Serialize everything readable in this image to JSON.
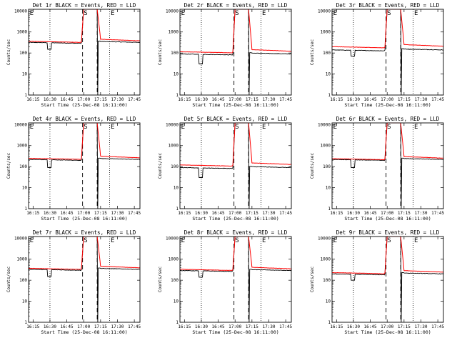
{
  "figure": {
    "ylabel": "Counts/sec",
    "xlabel": "Start Time (25-Dec-08 16:11:00)"
  },
  "colors": {
    "events": "#000000",
    "lld": "#ff0000"
  },
  "chart_data": [
    {
      "type": "line",
      "title": "Det 1r BLACK = Events, RED = LLD",
      "xlabel": "Start Time (25-Dec-08 16:11:00)",
      "ylabel": "Counts/sec",
      "yscale": "log",
      "ylim": [
        1,
        12000
      ],
      "x_ticks": [
        "16:15",
        "16:30",
        "16:45",
        "17:00",
        "17:15",
        "17:30",
        "17:45"
      ],
      "y_ticks": [
        "1",
        "10",
        "100",
        "1000",
        "10000"
      ],
      "vlines_dotted": [
        "16:30",
        "17:23"
      ],
      "vlines_dashed": [
        "16:59",
        "17:12"
      ],
      "markers": [
        "E",
        "S",
        "E"
      ],
      "events_base": 320,
      "lld_base": 360,
      "dip": {
        "from": "16:28",
        "to": "16:31",
        "value": 150
      },
      "peak": {
        "from": "17:00",
        "to": "17:12",
        "value": 12000
      }
    },
    {
      "type": "line",
      "title": "Det 2r BLACK = Events, RED = LLD",
      "xlabel": "Start Time (25-Dec-08 16:11:00)",
      "ylabel": "Counts/sec",
      "yscale": "log",
      "ylim": [
        1,
        12000
      ],
      "x_ticks": [
        "16:15",
        "16:30",
        "16:45",
        "17:00",
        "17:15",
        "17:30",
        "17:45"
      ],
      "y_ticks": [
        "1",
        "10",
        "100",
        "1000",
        "10000"
      ],
      "vlines_dotted": [
        "16:30",
        "17:23"
      ],
      "vlines_dashed": [
        "16:59",
        "17:12"
      ],
      "markers": [
        "E",
        "S",
        "E"
      ],
      "events_base": 90,
      "lld_base": 115,
      "dip": {
        "from": "16:28",
        "to": "16:31",
        "value": 30
      },
      "peak": {
        "from": "17:00",
        "to": "17:12",
        "value": 12000
      }
    },
    {
      "type": "line",
      "title": "Det 3r BLACK = Events, RED = LLD",
      "xlabel": "Start Time (25-Dec-08 16:11:00)",
      "ylabel": "Counts/sec",
      "yscale": "log",
      "ylim": [
        1,
        12000
      ],
      "x_ticks": [
        "16:15",
        "16:30",
        "16:45",
        "17:00",
        "17:15",
        "17:30",
        "17:45"
      ],
      "y_ticks": [
        "1",
        "10",
        "100",
        "1000",
        "10000"
      ],
      "vlines_dotted": [
        "16:30",
        "17:23"
      ],
      "vlines_dashed": [
        "16:59",
        "17:12"
      ],
      "markers": [
        "E",
        "S",
        "E"
      ],
      "events_base": 140,
      "lld_base": 200,
      "dip": {
        "from": "16:28",
        "to": "16:31",
        "value": 70
      },
      "peak": {
        "from": "17:00",
        "to": "17:12",
        "value": 12000
      }
    },
    {
      "type": "line",
      "title": "Det 4r BLACK = Events, RED = LLD",
      "xlabel": "Start Time (25-Dec-08 16:11:00)",
      "ylabel": "Counts/sec",
      "yscale": "log",
      "ylim": [
        1,
        12000
      ],
      "x_ticks": [
        "16:15",
        "16:30",
        "16:45",
        "17:00",
        "17:15",
        "17:30",
        "17:45"
      ],
      "y_ticks": [
        "1",
        "10",
        "100",
        "1000",
        "10000"
      ],
      "vlines_dotted": [
        "16:30",
        "17:23"
      ],
      "vlines_dashed": [
        "16:59",
        "17:12"
      ],
      "markers": [
        "E",
        "S",
        "E"
      ],
      "events_base": 220,
      "lld_base": 250,
      "dip": {
        "from": "16:28",
        "to": "16:31",
        "value": 90
      },
      "peak": {
        "from": "17:00",
        "to": "17:12",
        "value": 12000
      }
    },
    {
      "type": "line",
      "title": "Det 5r BLACK = Events, RED = LLD",
      "xlabel": "Start Time (25-Dec-08 16:11:00)",
      "ylabel": "Counts/sec",
      "yscale": "log",
      "ylim": [
        1,
        12000
      ],
      "x_ticks": [
        "16:15",
        "16:30",
        "16:45",
        "17:00",
        "17:15",
        "17:30",
        "17:45"
      ],
      "y_ticks": [
        "1",
        "10",
        "100",
        "1000",
        "10000"
      ],
      "vlines_dotted": [
        "16:30",
        "17:23"
      ],
      "vlines_dashed": [
        "16:59",
        "17:12"
      ],
      "markers": [
        "E",
        "S",
        "E"
      ],
      "events_base": 90,
      "lld_base": 120,
      "dip": {
        "from": "16:28",
        "to": "16:31",
        "value": 30
      },
      "peak": {
        "from": "17:00",
        "to": "17:12",
        "value": 12000
      }
    },
    {
      "type": "line",
      "title": "Det 6r BLACK = Events, RED = LLD",
      "xlabel": "Start Time (25-Dec-08 16:11:00)",
      "ylabel": "Counts/sec",
      "yscale": "log",
      "ylim": [
        1,
        12000
      ],
      "x_ticks": [
        "16:15",
        "16:30",
        "16:45",
        "17:00",
        "17:15",
        "17:30",
        "17:45"
      ],
      "y_ticks": [
        "1",
        "10",
        "100",
        "1000",
        "10000"
      ],
      "vlines_dotted": [
        "16:30",
        "17:23"
      ],
      "vlines_dashed": [
        "16:59",
        "17:12"
      ],
      "markers": [
        "E",
        "S",
        "E"
      ],
      "events_base": 220,
      "lld_base": 240,
      "dip": {
        "from": "16:28",
        "to": "16:31",
        "value": 90
      },
      "peak": {
        "from": "17:00",
        "to": "17:12",
        "value": 12000
      }
    },
    {
      "type": "line",
      "title": "Det 7r BLACK = Events, RED = LLD",
      "xlabel": "Start Time (25-Dec-08 16:11:00)",
      "ylabel": "Counts/sec",
      "yscale": "log",
      "ylim": [
        1,
        12000
      ],
      "x_ticks": [
        "16:15",
        "16:30",
        "16:45",
        "17:00",
        "17:15",
        "17:30",
        "17:45"
      ],
      "y_ticks": [
        "1",
        "10",
        "100",
        "1000",
        "10000"
      ],
      "vlines_dotted": [
        "16:30",
        "17:23"
      ],
      "vlines_dashed": [
        "16:59",
        "17:12"
      ],
      "markers": [
        "E",
        "S",
        "E"
      ],
      "events_base": 330,
      "lld_base": 370,
      "dip": {
        "from": "16:28",
        "to": "16:31",
        "value": 150
      },
      "peak": {
        "from": "17:00",
        "to": "17:12",
        "value": 12000
      }
    },
    {
      "type": "line",
      "title": "Det 8r BLACK = Events, RED = LLD",
      "xlabel": "Start Time (25-Dec-08 16:11:00)",
      "ylabel": "Counts/sec",
      "yscale": "log",
      "ylim": [
        1,
        12000
      ],
      "x_ticks": [
        "16:15",
        "16:30",
        "16:45",
        "17:00",
        "17:15",
        "17:30",
        "17:45"
      ],
      "y_ticks": [
        "1",
        "10",
        "100",
        "1000",
        "10000"
      ],
      "vlines_dotted": [
        "16:30",
        "17:23"
      ],
      "vlines_dashed": [
        "16:59",
        "17:12"
      ],
      "markers": [
        "E",
        "S",
        "E"
      ],
      "events_base": 290,
      "lld_base": 330,
      "dip": {
        "from": "16:28",
        "to": "16:31",
        "value": 140
      },
      "peak": {
        "from": "17:00",
        "to": "17:12",
        "value": 12000
      }
    },
    {
      "type": "line",
      "title": "Det 9r BLACK = Events, RED = LLD",
      "xlabel": "Start Time (25-Dec-08 16:11:00)",
      "ylabel": "Counts/sec",
      "yscale": "log",
      "ylim": [
        1,
        12000
      ],
      "x_ticks": [
        "16:15",
        "16:30",
        "16:45",
        "17:00",
        "17:15",
        "17:30",
        "17:45"
      ],
      "y_ticks": [
        "1",
        "10",
        "100",
        "1000",
        "10000"
      ],
      "vlines_dotted": [
        "16:30",
        "17:23"
      ],
      "vlines_dashed": [
        "16:59",
        "17:12"
      ],
      "markers": [
        "E",
        "S",
        "E"
      ],
      "events_base": 200,
      "lld_base": 230,
      "dip": {
        "from": "16:28",
        "to": "16:31",
        "value": 100
      },
      "peak": {
        "from": "17:00",
        "to": "17:12",
        "value": 12000
      }
    }
  ]
}
